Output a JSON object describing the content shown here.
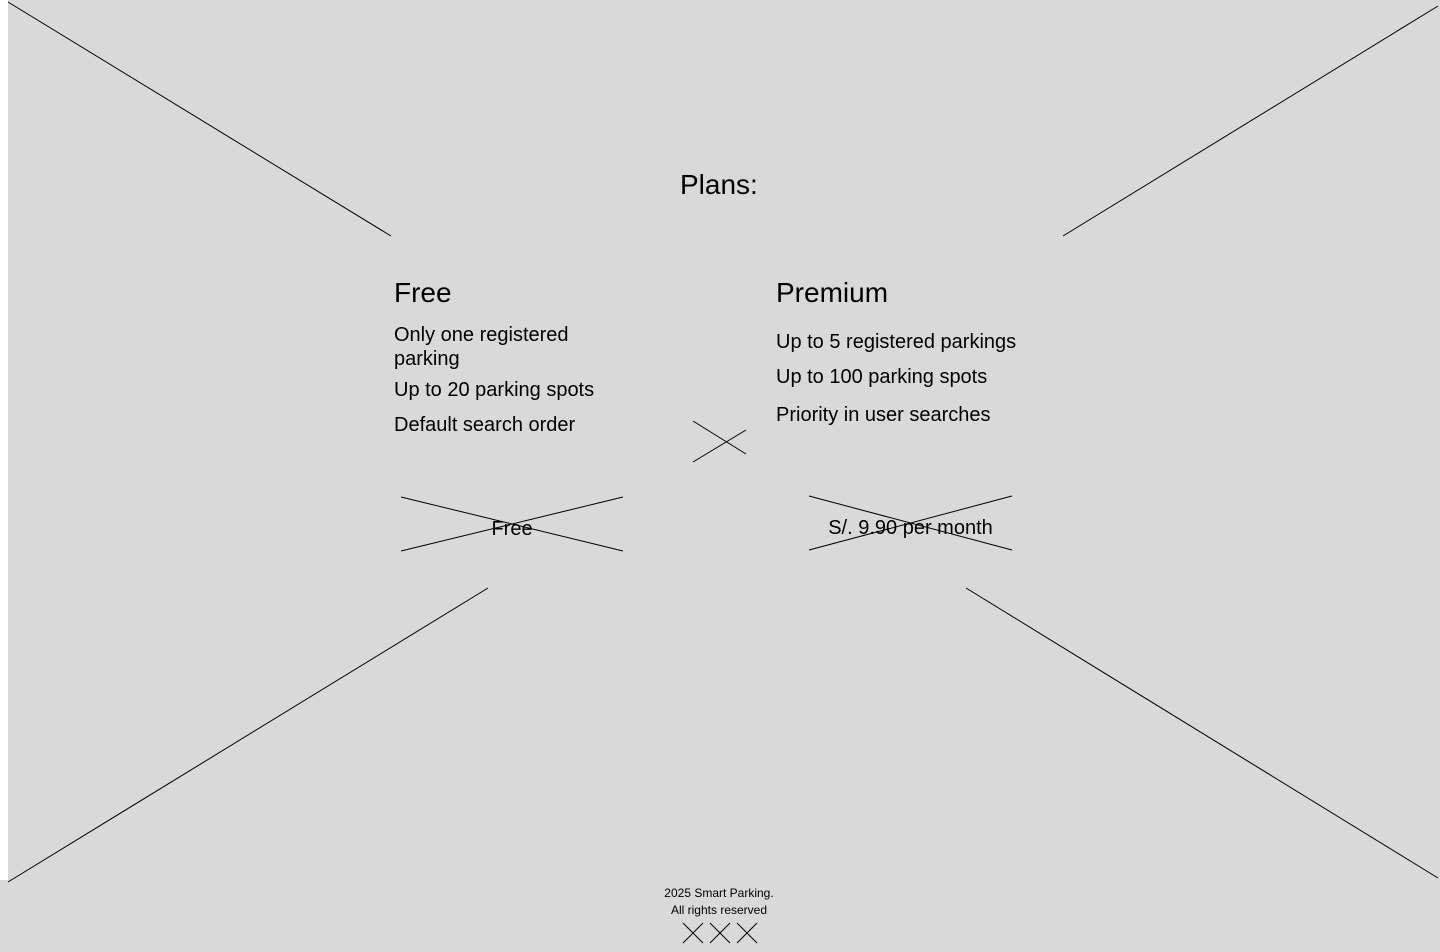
{
  "page": {
    "title": "Plans:"
  },
  "plans": [
    {
      "name": "Free",
      "features": [
        "Only one registered parking",
        "Up to 20 parking spots",
        "Default search order"
      ],
      "price_label": "Free"
    },
    {
      "name": "Premium",
      "features": [
        "Up to 5 registered parkings",
        "Up to 100 parking spots",
        "Priority in user searches"
      ],
      "price_label": "S/. 9.90 per month"
    }
  ],
  "footer": {
    "copyright_line1": "2025 Smart Parking.",
    "copyright_line2": "All rights reserved",
    "social_icons": [
      "social-placeholder-icon",
      "social-placeholder-icon",
      "social-placeholder-icon"
    ]
  },
  "colors": {
    "background": "#d9d9d9",
    "stroke": "#000000"
  }
}
